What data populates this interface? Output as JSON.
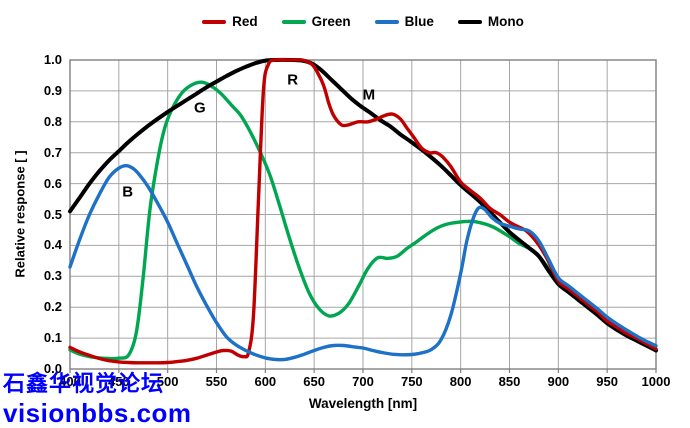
{
  "legend": {
    "items": [
      {
        "label": "Red",
        "color": "#c00000"
      },
      {
        "label": "Green",
        "color": "#00a650"
      },
      {
        "label": "Blue",
        "color": "#1d71c6"
      },
      {
        "label": "Mono",
        "color": "#000000"
      }
    ]
  },
  "axes": {
    "y": {
      "title": "Relative response [ ]",
      "tick_values": [
        0,
        0.1,
        0.2,
        0.3,
        0.4,
        0.5,
        0.6,
        0.7,
        0.8,
        0.9,
        1.0
      ],
      "tick_labels": [
        "0.0",
        "0.1",
        "0.2",
        "0.3",
        "0.4",
        "0.5",
        "0.6",
        "0.7",
        "0.8",
        "0.9",
        "1.0"
      ]
    },
    "x": {
      "title": "Wavelength [nm]",
      "tick_values": [
        400,
        450,
        500,
        550,
        600,
        650,
        700,
        750,
        800,
        850,
        900,
        950,
        1000
      ],
      "tick_labels": [
        "400",
        "450",
        "500",
        "550",
        "600",
        "650",
        "700",
        "750",
        "800",
        "850",
        "900",
        "950",
        "1000"
      ]
    }
  },
  "curve_labels": [
    {
      "text": "B",
      "nm": 459,
      "value": 0.573
    },
    {
      "text": "G",
      "nm": 533,
      "value": 0.845
    },
    {
      "text": "R",
      "nm": 628,
      "value": 0.935
    },
    {
      "text": "M",
      "nm": 706,
      "value": 0.888
    }
  ],
  "watermark": {
    "line1": "石鑫华视觉论坛",
    "line2": "visionbbs.com",
    "color": "#0000ff"
  },
  "style": {
    "grid_color": "#a6a6a6",
    "frame_color": "#7f7f7f",
    "background": "#ffffff"
  },
  "chart_data": {
    "type": "line",
    "title": "",
    "xlabel": "Wavelength [nm]",
    "ylabel": "Relative response [ ]",
    "xlim": [
      400,
      1000
    ],
    "ylim": [
      0,
      1.0
    ],
    "grid": true,
    "legend_position": "top",
    "series": [
      {
        "name": "Green",
        "color": "#00a650",
        "width": 3.4,
        "points": [
          [
            400,
            0.062
          ],
          [
            410,
            0.048
          ],
          [
            420,
            0.04
          ],
          [
            430,
            0.036
          ],
          [
            440,
            0.034
          ],
          [
            450,
            0.035
          ],
          [
            460,
            0.045
          ],
          [
            468,
            0.12
          ],
          [
            475,
            0.3
          ],
          [
            482,
            0.52
          ],
          [
            490,
            0.68
          ],
          [
            497,
            0.78
          ],
          [
            505,
            0.845
          ],
          [
            515,
            0.895
          ],
          [
            525,
            0.92
          ],
          [
            535,
            0.928
          ],
          [
            545,
            0.915
          ],
          [
            555,
            0.89
          ],
          [
            565,
            0.855
          ],
          [
            575,
            0.82
          ],
          [
            585,
            0.765
          ],
          [
            595,
            0.7
          ],
          [
            605,
            0.625
          ],
          [
            615,
            0.525
          ],
          [
            625,
            0.42
          ],
          [
            635,
            0.325
          ],
          [
            645,
            0.245
          ],
          [
            655,
            0.195
          ],
          [
            665,
            0.172
          ],
          [
            675,
            0.18
          ],
          [
            685,
            0.21
          ],
          [
            695,
            0.265
          ],
          [
            705,
            0.325
          ],
          [
            715,
            0.36
          ],
          [
            725,
            0.358
          ],
          [
            735,
            0.365
          ],
          [
            745,
            0.39
          ],
          [
            755,
            0.412
          ],
          [
            765,
            0.435
          ],
          [
            775,
            0.455
          ],
          [
            785,
            0.468
          ],
          [
            795,
            0.474
          ],
          [
            810,
            0.478
          ],
          [
            822,
            0.472
          ],
          [
            835,
            0.457
          ],
          [
            850,
            0.428
          ],
          [
            860,
            0.406
          ],
          [
            870,
            0.39
          ],
          [
            880,
            0.365
          ],
          [
            890,
            0.325
          ],
          [
            900,
            0.28
          ],
          [
            910,
            0.255
          ],
          [
            920,
            0.23
          ],
          [
            930,
            0.205
          ],
          [
            940,
            0.18
          ],
          [
            950,
            0.152
          ],
          [
            960,
            0.132
          ],
          [
            970,
            0.113
          ],
          [
            980,
            0.096
          ],
          [
            990,
            0.078
          ],
          [
            1000,
            0.06
          ]
        ]
      },
      {
        "name": "Mono",
        "color": "#000000",
        "width": 4,
        "points": [
          [
            400,
            0.51
          ],
          [
            410,
            0.555
          ],
          [
            420,
            0.6
          ],
          [
            430,
            0.64
          ],
          [
            440,
            0.675
          ],
          [
            450,
            0.705
          ],
          [
            460,
            0.735
          ],
          [
            470,
            0.762
          ],
          [
            480,
            0.787
          ],
          [
            490,
            0.81
          ],
          [
            500,
            0.832
          ],
          [
            510,
            0.852
          ],
          [
            520,
            0.872
          ],
          [
            530,
            0.892
          ],
          [
            540,
            0.912
          ],
          [
            550,
            0.93
          ],
          [
            560,
            0.948
          ],
          [
            570,
            0.964
          ],
          [
            580,
            0.978
          ],
          [
            590,
            0.99
          ],
          [
            600,
            0.998
          ],
          [
            610,
            1.0
          ],
          [
            625,
            1.0
          ],
          [
            638,
            0.998
          ],
          [
            648,
            0.988
          ],
          [
            658,
            0.965
          ],
          [
            668,
            0.935
          ],
          [
            678,
            0.905
          ],
          [
            688,
            0.875
          ],
          [
            698,
            0.85
          ],
          [
            708,
            0.828
          ],
          [
            718,
            0.805
          ],
          [
            728,
            0.785
          ],
          [
            738,
            0.76
          ],
          [
            748,
            0.738
          ],
          [
            758,
            0.715
          ],
          [
            768,
            0.69
          ],
          [
            778,
            0.663
          ],
          [
            788,
            0.633
          ],
          [
            800,
            0.595
          ],
          [
            810,
            0.568
          ],
          [
            820,
            0.54
          ],
          [
            830,
            0.508
          ],
          [
            840,
            0.475
          ],
          [
            850,
            0.443
          ],
          [
            860,
            0.417
          ],
          [
            870,
            0.392
          ],
          [
            880,
            0.365
          ],
          [
            890,
            0.318
          ],
          [
            900,
            0.275
          ],
          [
            910,
            0.25
          ],
          [
            920,
            0.225
          ],
          [
            930,
            0.2
          ],
          [
            940,
            0.175
          ],
          [
            950,
            0.148
          ],
          [
            960,
            0.127
          ],
          [
            970,
            0.108
          ],
          [
            980,
            0.092
          ],
          [
            990,
            0.076
          ],
          [
            1000,
            0.06
          ]
        ]
      },
      {
        "name": "Red",
        "color": "#c00000",
        "width": 3.4,
        "points": [
          [
            400,
            0.07
          ],
          [
            410,
            0.055
          ],
          [
            420,
            0.044
          ],
          [
            430,
            0.034
          ],
          [
            440,
            0.027
          ],
          [
            450,
            0.023
          ],
          [
            460,
            0.021
          ],
          [
            470,
            0.02
          ],
          [
            480,
            0.02
          ],
          [
            490,
            0.02
          ],
          [
            500,
            0.021
          ],
          [
            510,
            0.024
          ],
          [
            520,
            0.028
          ],
          [
            530,
            0.035
          ],
          [
            540,
            0.045
          ],
          [
            550,
            0.055
          ],
          [
            557,
            0.06
          ],
          [
            565,
            0.058
          ],
          [
            572,
            0.045
          ],
          [
            578,
            0.04
          ],
          [
            583,
            0.055
          ],
          [
            588,
            0.18
          ],
          [
            593,
            0.55
          ],
          [
            598,
            0.9
          ],
          [
            603,
            0.985
          ],
          [
            610,
            1.0
          ],
          [
            625,
            1.0
          ],
          [
            638,
            1.0
          ],
          [
            648,
            0.985
          ],
          [
            655,
            0.95
          ],
          [
            660,
            0.915
          ],
          [
            665,
            0.86
          ],
          [
            670,
            0.82
          ],
          [
            678,
            0.79
          ],
          [
            685,
            0.79
          ],
          [
            695,
            0.8
          ],
          [
            705,
            0.8
          ],
          [
            715,
            0.81
          ],
          [
            722,
            0.82
          ],
          [
            730,
            0.825
          ],
          [
            738,
            0.81
          ],
          [
            745,
            0.78
          ],
          [
            752,
            0.75
          ],
          [
            760,
            0.715
          ],
          [
            768,
            0.7
          ],
          [
            775,
            0.7
          ],
          [
            782,
            0.685
          ],
          [
            790,
            0.655
          ],
          [
            800,
            0.605
          ],
          [
            810,
            0.578
          ],
          [
            820,
            0.553
          ],
          [
            830,
            0.52
          ],
          [
            840,
            0.5
          ],
          [
            850,
            0.475
          ],
          [
            858,
            0.462
          ],
          [
            868,
            0.445
          ],
          [
            878,
            0.41
          ],
          [
            888,
            0.36
          ],
          [
            900,
            0.285
          ],
          [
            910,
            0.26
          ],
          [
            920,
            0.235
          ],
          [
            930,
            0.21
          ],
          [
            940,
            0.185
          ],
          [
            950,
            0.155
          ],
          [
            960,
            0.135
          ],
          [
            970,
            0.115
          ],
          [
            980,
            0.1
          ],
          [
            990,
            0.082
          ],
          [
            1000,
            0.065
          ]
        ]
      },
      {
        "name": "Blue",
        "color": "#1d71c6",
        "width": 3.4,
        "points": [
          [
            400,
            0.33
          ],
          [
            410,
            0.42
          ],
          [
            420,
            0.5
          ],
          [
            430,
            0.565
          ],
          [
            440,
            0.62
          ],
          [
            450,
            0.65
          ],
          [
            458,
            0.658
          ],
          [
            465,
            0.648
          ],
          [
            472,
            0.625
          ],
          [
            480,
            0.59
          ],
          [
            490,
            0.535
          ],
          [
            500,
            0.475
          ],
          [
            510,
            0.405
          ],
          [
            520,
            0.335
          ],
          [
            530,
            0.265
          ],
          [
            540,
            0.205
          ],
          [
            550,
            0.15
          ],
          [
            560,
            0.105
          ],
          [
            570,
            0.078
          ],
          [
            580,
            0.06
          ],
          [
            590,
            0.046
          ],
          [
            600,
            0.036
          ],
          [
            610,
            0.031
          ],
          [
            620,
            0.031
          ],
          [
            630,
            0.038
          ],
          [
            640,
            0.048
          ],
          [
            650,
            0.06
          ],
          [
            660,
            0.07
          ],
          [
            670,
            0.076
          ],
          [
            680,
            0.076
          ],
          [
            690,
            0.072
          ],
          [
            700,
            0.068
          ],
          [
            710,
            0.06
          ],
          [
            720,
            0.053
          ],
          [
            730,
            0.048
          ],
          [
            740,
            0.046
          ],
          [
            750,
            0.047
          ],
          [
            760,
            0.052
          ],
          [
            770,
            0.063
          ],
          [
            780,
            0.095
          ],
          [
            790,
            0.175
          ],
          [
            800,
            0.31
          ],
          [
            806,
            0.41
          ],
          [
            812,
            0.48
          ],
          [
            818,
            0.52
          ],
          [
            824,
            0.518
          ],
          [
            832,
            0.49
          ],
          [
            840,
            0.472
          ],
          [
            850,
            0.462
          ],
          [
            860,
            0.453
          ],
          [
            870,
            0.447
          ],
          [
            880,
            0.415
          ],
          [
            890,
            0.355
          ],
          [
            900,
            0.295
          ],
          [
            910,
            0.27
          ],
          [
            920,
            0.245
          ],
          [
            930,
            0.22
          ],
          [
            940,
            0.195
          ],
          [
            950,
            0.168
          ],
          [
            960,
            0.146
          ],
          [
            970,
            0.126
          ],
          [
            980,
            0.107
          ],
          [
            990,
            0.09
          ],
          [
            1000,
            0.075
          ]
        ]
      }
    ]
  }
}
